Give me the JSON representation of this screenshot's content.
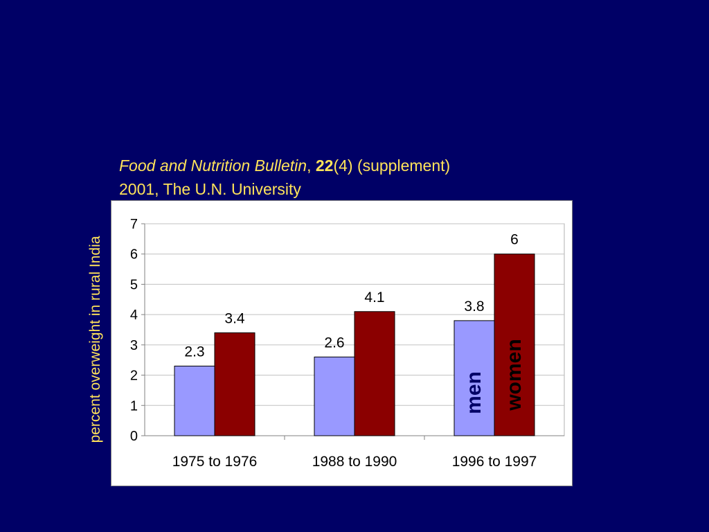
{
  "citation": {
    "journal": "Food and Nutrition Bulletin",
    "sep": ", ",
    "volume": "22",
    "rest": "(4) (supplement)",
    "line2": "2001, The U.N. University"
  },
  "colors": {
    "background": "#000066",
    "label_text": "#FFE35A",
    "men": "#9999FF",
    "women": "#8B0000"
  },
  "chart_data": {
    "type": "bar",
    "title": "",
    "xlabel": "",
    "ylabel": "percent overweight in rural India",
    "categories": [
      "1975 to 1976",
      "1988 to 1990",
      "1996 to 1997"
    ],
    "series": [
      {
        "name": "men",
        "values": [
          2.3,
          2.6,
          3.8
        ],
        "labels": [
          "2.3",
          "2.6",
          "3.8"
        ],
        "color": "#9999FF"
      },
      {
        "name": "women",
        "values": [
          3.4,
          4.1,
          6
        ],
        "labels": [
          "3.4",
          "4.1",
          "6"
        ],
        "color": "#8B0000"
      }
    ],
    "ylim": [
      0,
      7
    ],
    "yticks": [
      "0",
      "1",
      "2",
      "3",
      "4",
      "5",
      "6",
      "7"
    ],
    "grid": true,
    "legend": "in-bar"
  }
}
